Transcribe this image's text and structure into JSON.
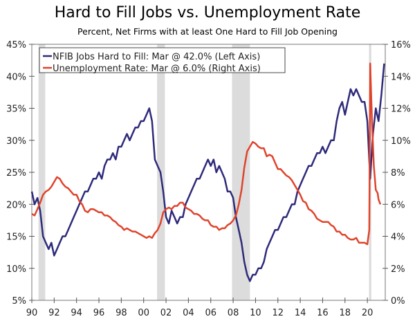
{
  "chart_data": {
    "type": "line",
    "title": "Hard to Fill Jobs vs. Unemployment Rate",
    "subtitle": "Percent, Net Firms with at least One Hard to Fill Job Opening",
    "xlim": [
      1990,
      2021.6
    ],
    "x_ticks": [
      1990,
      1992,
      1994,
      1996,
      1998,
      2000,
      2002,
      2004,
      2006,
      2008,
      2010,
      2012,
      2014,
      2016,
      2018,
      2020
    ],
    "x_tick_labels": [
      "90",
      "92",
      "94",
      "96",
      "98",
      "00",
      "02",
      "04",
      "06",
      "08",
      "10",
      "12",
      "14",
      "16",
      "18",
      "20"
    ],
    "ylim_left": [
      5,
      45
    ],
    "y_left_ticks": [
      "5%",
      "10%",
      "15%",
      "20%",
      "25%",
      "30%",
      "35%",
      "40%",
      "45%"
    ],
    "ylim_right": [
      0,
      16
    ],
    "y_right_ticks": [
      "0%",
      "2%",
      "4%",
      "6%",
      "8%",
      "10%",
      "12%",
      "14%",
      "16%"
    ],
    "recessions": [
      [
        1990.6,
        1991.2
      ],
      [
        2001.2,
        2001.9
      ],
      [
        2007.9,
        2009.5
      ],
      [
        2020.15,
        2020.35
      ]
    ],
    "legend_position": "top-left",
    "series": [
      {
        "name": "NFIB Jobs Hard to Fill: Mar @ 42.0% (Left Axis)",
        "axis": "left",
        "color": "#2e2a7a",
        "start": 1990,
        "step": 0.25,
        "values": [
          22,
          20,
          21,
          19,
          15,
          14,
          13,
          14,
          12,
          13,
          14,
          15,
          15,
          16,
          17,
          18,
          19,
          20,
          21,
          22,
          22,
          23,
          24,
          24,
          25,
          24,
          26,
          27,
          27,
          28,
          27,
          29,
          29,
          30,
          31,
          30,
          31,
          32,
          32,
          33,
          33,
          34,
          35,
          33,
          27,
          26,
          25,
          22,
          18,
          17,
          19,
          18,
          17,
          18,
          18,
          20,
          21,
          22,
          23,
          24,
          24,
          25,
          26,
          27,
          26,
          27,
          25,
          26,
          25,
          24,
          22,
          22,
          21,
          18,
          16,
          14,
          11,
          9,
          8,
          9,
          9,
          10,
          10,
          11,
          13,
          14,
          15,
          16,
          16,
          17,
          18,
          18,
          19,
          20,
          20,
          22,
          23,
          24,
          25,
          26,
          26,
          27,
          28,
          28,
          29,
          28,
          29,
          30,
          30,
          33,
          35,
          36,
          34,
          36,
          38,
          37,
          38,
          37,
          36,
          36,
          33,
          24,
          31,
          35,
          33,
          37,
          42
        ]
      },
      {
        "name": "Unemployment Rate: Mar @ 6.0% (Right Axis)",
        "axis": "right",
        "color": "#e0432b",
        "points": [
          [
            1990,
            5.4
          ],
          [
            1990.25,
            5.3
          ],
          [
            1990.5,
            5.7
          ],
          [
            1990.75,
            6.1
          ],
          [
            1991,
            6.6
          ],
          [
            1991.25,
            6.8
          ],
          [
            1991.5,
            6.9
          ],
          [
            1991.75,
            7.1
          ],
          [
            1992,
            7.4
          ],
          [
            1992.25,
            7.7
          ],
          [
            1992.5,
            7.6
          ],
          [
            1992.75,
            7.3
          ],
          [
            1993,
            7.1
          ],
          [
            1993.25,
            7.0
          ],
          [
            1993.5,
            6.8
          ],
          [
            1993.75,
            6.6
          ],
          [
            1994,
            6.6
          ],
          [
            1994.25,
            6.2
          ],
          [
            1994.5,
            6.0
          ],
          [
            1994.75,
            5.6
          ],
          [
            1995,
            5.5
          ],
          [
            1995.25,
            5.7
          ],
          [
            1995.5,
            5.7
          ],
          [
            1995.75,
            5.6
          ],
          [
            1996,
            5.5
          ],
          [
            1996.25,
            5.5
          ],
          [
            1996.5,
            5.3
          ],
          [
            1996.75,
            5.3
          ],
          [
            1997,
            5.2
          ],
          [
            1997.25,
            5.0
          ],
          [
            1997.5,
            4.9
          ],
          [
            1997.75,
            4.7
          ],
          [
            1998,
            4.6
          ],
          [
            1998.25,
            4.4
          ],
          [
            1998.5,
            4.5
          ],
          [
            1998.75,
            4.4
          ],
          [
            1999,
            4.3
          ],
          [
            1999.25,
            4.3
          ],
          [
            1999.5,
            4.2
          ],
          [
            1999.75,
            4.1
          ],
          [
            2000,
            4.0
          ],
          [
            2000.25,
            3.9
          ],
          [
            2000.5,
            4.0
          ],
          [
            2000.75,
            3.9
          ],
          [
            2001,
            4.2
          ],
          [
            2001.25,
            4.4
          ],
          [
            2001.5,
            4.8
          ],
          [
            2001.75,
            5.5
          ],
          [
            2002,
            5.7
          ],
          [
            2002.25,
            5.8
          ],
          [
            2002.5,
            5.7
          ],
          [
            2002.75,
            5.9
          ],
          [
            2003,
            5.9
          ],
          [
            2003.25,
            6.1
          ],
          [
            2003.5,
            6.1
          ],
          [
            2003.75,
            5.8
          ],
          [
            2004,
            5.7
          ],
          [
            2004.25,
            5.6
          ],
          [
            2004.5,
            5.4
          ],
          [
            2004.75,
            5.4
          ],
          [
            2005,
            5.3
          ],
          [
            2005.25,
            5.1
          ],
          [
            2005.5,
            5.0
          ],
          [
            2005.75,
            5.0
          ],
          [
            2006,
            4.7
          ],
          [
            2006.25,
            4.6
          ],
          [
            2006.5,
            4.6
          ],
          [
            2006.75,
            4.4
          ],
          [
            2007,
            4.5
          ],
          [
            2007.25,
            4.5
          ],
          [
            2007.5,
            4.7
          ],
          [
            2007.75,
            4.8
          ],
          [
            2008,
            5.0
          ],
          [
            2008.25,
            5.3
          ],
          [
            2008.5,
            6.0
          ],
          [
            2008.75,
            6.9
          ],
          [
            2009,
            8.3
          ],
          [
            2009.25,
            9.3
          ],
          [
            2009.5,
            9.6
          ],
          [
            2009.75,
            9.9
          ],
          [
            2010,
            9.8
          ],
          [
            2010.25,
            9.6
          ],
          [
            2010.5,
            9.5
          ],
          [
            2010.75,
            9.5
          ],
          [
            2011,
            9.0
          ],
          [
            2011.25,
            9.1
          ],
          [
            2011.5,
            9.0
          ],
          [
            2011.75,
            8.6
          ],
          [
            2012,
            8.2
          ],
          [
            2012.25,
            8.2
          ],
          [
            2012.5,
            8.0
          ],
          [
            2012.75,
            7.8
          ],
          [
            2013,
            7.7
          ],
          [
            2013.25,
            7.5
          ],
          [
            2013.5,
            7.2
          ],
          [
            2013.75,
            6.9
          ],
          [
            2014,
            6.6
          ],
          [
            2014.25,
            6.2
          ],
          [
            2014.5,
            6.1
          ],
          [
            2014.75,
            5.7
          ],
          [
            2015,
            5.6
          ],
          [
            2015.25,
            5.4
          ],
          [
            2015.5,
            5.1
          ],
          [
            2015.75,
            5.0
          ],
          [
            2016,
            4.9
          ],
          [
            2016.25,
            4.9
          ],
          [
            2016.5,
            4.9
          ],
          [
            2016.75,
            4.7
          ],
          [
            2017,
            4.6
          ],
          [
            2017.25,
            4.3
          ],
          [
            2017.5,
            4.3
          ],
          [
            2017.75,
            4.1
          ],
          [
            2018,
            4.1
          ],
          [
            2018.25,
            3.9
          ],
          [
            2018.5,
            3.8
          ],
          [
            2018.75,
            3.8
          ],
          [
            2019,
            3.9
          ],
          [
            2019.25,
            3.6
          ],
          [
            2019.5,
            3.6
          ],
          [
            2019.75,
            3.6
          ],
          [
            2020.0,
            3.5
          ],
          [
            2020.17,
            4.4
          ],
          [
            2020.25,
            14.8
          ],
          [
            2020.42,
            11.1
          ],
          [
            2020.58,
            8.4
          ],
          [
            2020.75,
            6.9
          ],
          [
            2020.92,
            6.7
          ],
          [
            2021.0,
            6.3
          ],
          [
            2021.17,
            6.0
          ]
        ]
      }
    ]
  }
}
